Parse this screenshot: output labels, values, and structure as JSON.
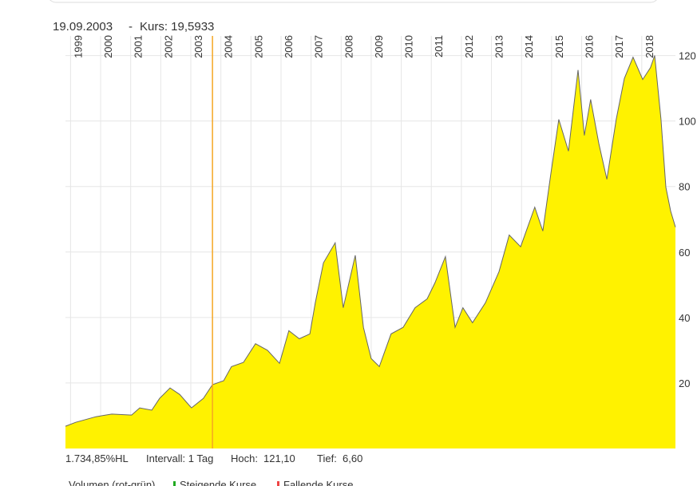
{
  "chart_data": {
    "type": "area",
    "header_date": "19.09.2003",
    "header_separator": "-",
    "header_price": "Kurs: 19,5933",
    "cursor_x": 2003.72,
    "x": [
      1998.83,
      1999.17,
      1999.84,
      2000.37,
      2001.03,
      2001.3,
      2001.7,
      2001.96,
      2002.31,
      2002.63,
      2003.02,
      2003.42,
      2003.72,
      2004.09,
      2004.35,
      2004.75,
      2005.15,
      2005.55,
      2005.95,
      2006.26,
      2006.61,
      2006.96,
      2007.14,
      2007.41,
      2007.8,
      2008.07,
      2008.47,
      2008.74,
      2009.0,
      2009.27,
      2009.66,
      2010.06,
      2010.46,
      2010.86,
      2011.12,
      2011.47,
      2011.79,
      2012.05,
      2012.37,
      2012.8,
      2013.25,
      2013.59,
      2013.97,
      2014.44,
      2014.71,
      2014.97,
      2015.24,
      2015.56,
      2015.88,
      2016.09,
      2016.3,
      2016.57,
      2016.84,
      2017.15,
      2017.42,
      2017.71,
      2018.03,
      2018.29,
      2018.43,
      2018.64,
      2018.8,
      2018.96,
      2019.12
    ],
    "values": [
      6.8,
      8,
      9.7,
      10.5,
      10.2,
      12.4,
      11.7,
      15.3,
      18.5,
      16.5,
      12.4,
      15.3,
      19.5,
      20.7,
      25,
      26.3,
      32,
      30,
      26,
      36,
      33.5,
      35,
      44.5,
      56.7,
      62.8,
      43,
      59,
      37,
      27.5,
      25,
      35,
      37,
      43,
      45.7,
      50.6,
      58.6,
      37,
      43,
      38.4,
      44.5,
      54,
      65.2,
      61.6,
      73.7,
      66.4,
      83.5,
      100.5,
      90.8,
      115.6,
      95.6,
      106.6,
      93.2,
      82.2,
      100.5,
      113,
      119.5,
      112.7,
      116.3,
      120,
      100.5,
      79.8,
      72.5,
      67.6
    ],
    "color": "#fff200",
    "line_color": "#666666",
    "cursor_color": "#f5a623",
    "xlim": [
      1998.83,
      2019.12
    ],
    "xticks": [
      1999,
      2000,
      2001,
      2002,
      2003,
      2004,
      2005,
      2006,
      2007,
      2008,
      2009,
      2010,
      2011,
      2012,
      2013,
      2014,
      2015,
      2016,
      2017,
      2018
    ],
    "ylim": [
      0,
      126
    ],
    "yticks": [
      20,
      40,
      60,
      80,
      100,
      120
    ],
    "grid": true,
    "footer": {
      "change": "1.734,85%HL",
      "interval": "Intervall: 1 Tag",
      "high_label": "Hoch:",
      "high": "121,10",
      "low_label": "Tief:",
      "low": "6,60"
    },
    "legend": [
      "Volumen (rot-grün)",
      "Steigende Kurse",
      "Fallende Kurse"
    ]
  }
}
